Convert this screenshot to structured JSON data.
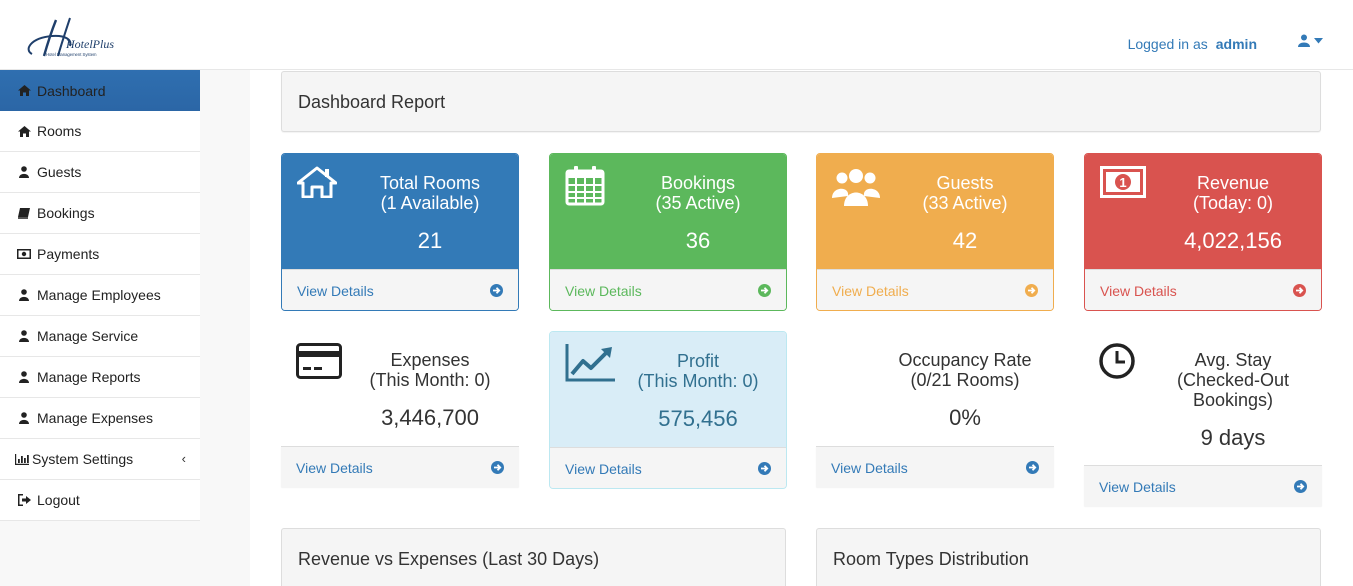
{
  "brand": {
    "logo_text": "HotelPlus",
    "logo_subtitle": "Hotel Management System"
  },
  "header": {
    "logged_in_label": "Logged in as",
    "username": "admin",
    "user_icon": "user-icon"
  },
  "sidebar": {
    "items": [
      {
        "label": "Dashboard",
        "icon": "home-icon",
        "active": true
      },
      {
        "label": "Rooms",
        "icon": "home-icon"
      },
      {
        "label": "Guests",
        "icon": "user-icon"
      },
      {
        "label": "Bookings",
        "icon": "book-icon"
      },
      {
        "label": "Payments",
        "icon": "money-icon"
      },
      {
        "label": "Manage Employees",
        "icon": "user-icon"
      },
      {
        "label": "Manage Service",
        "icon": "user-icon"
      },
      {
        "label": "Manage Reports",
        "icon": "user-icon"
      },
      {
        "label": "Manage Expenses",
        "icon": "user-icon"
      },
      {
        "label": "System Settings",
        "icon": "bar-chart-icon",
        "caret": "‹"
      },
      {
        "label": "Logout",
        "icon": "sign-out-icon"
      }
    ]
  },
  "main": {
    "title": "Dashboard Report",
    "view_details": "View Details",
    "cards": [
      {
        "line1": "Total Rooms",
        "line2": "(1 Available)",
        "value": "21",
        "icon": "home-icon",
        "color": "#337ab7"
      },
      {
        "line1": "Bookings",
        "line2": "(35 Active)",
        "value": "36",
        "icon": "calendar-icon",
        "color": "#5cb85c"
      },
      {
        "line1": "Guests",
        "line2": "(33 Active)",
        "value": "42",
        "icon": "users-icon",
        "color": "#f0ad4e"
      },
      {
        "line1": "Revenue",
        "line2": "(Today: 0)",
        "value": "4,022,156",
        "icon": "money-icon",
        "color": "#d9534f"
      }
    ],
    "cards2": [
      {
        "line1": "Expenses",
        "line2": "(This Month: 0)",
        "value": "3,446,700",
        "icon": "credit-card-icon"
      },
      {
        "line1": "Profit",
        "line2": "(This Month: 0)",
        "value": "575,456",
        "icon": "line-chart-icon"
      },
      {
        "line1": "Occupancy Rate",
        "line2": "(0/21 Rooms)",
        "value": "0%"
      },
      {
        "line1": "Avg. Stay",
        "line2": "(Checked-Out",
        "line3": "Bookings)",
        "value": "9 days",
        "icon": "clock-icon"
      }
    ],
    "sections": [
      {
        "title": "Revenue vs Expenses (Last 30 Days)"
      },
      {
        "title": "Room Types Distribution"
      }
    ]
  }
}
